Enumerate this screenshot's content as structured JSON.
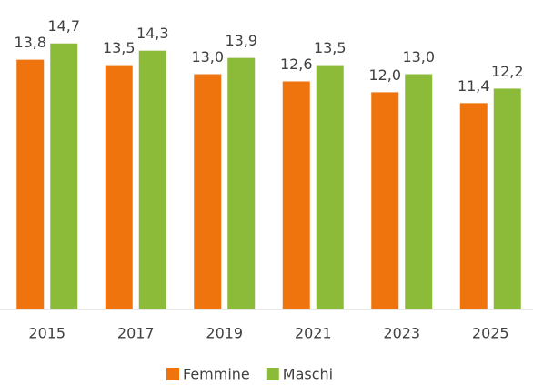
{
  "chart_data": {
    "type": "bar",
    "categories": [
      "2015",
      "2017",
      "2019",
      "2021",
      "2023",
      "2025"
    ],
    "series": [
      {
        "name": "Femmine",
        "color": "#f0740e",
        "values": [
          13.8,
          13.5,
          13.0,
          12.6,
          12.0,
          11.4
        ],
        "value_labels": [
          "13,8",
          "13,5",
          "13,0",
          "12,6",
          "12,0",
          "11,4"
        ]
      },
      {
        "name": "Maschi",
        "color": "#8cbb3a",
        "values": [
          14.7,
          14.3,
          13.9,
          13.5,
          13.0,
          12.2
        ],
        "value_labels": [
          "14,7",
          "14,3",
          "13,9",
          "13,5",
          "13,0",
          "12,2"
        ]
      }
    ],
    "ylim": [
      0,
      17
    ]
  }
}
